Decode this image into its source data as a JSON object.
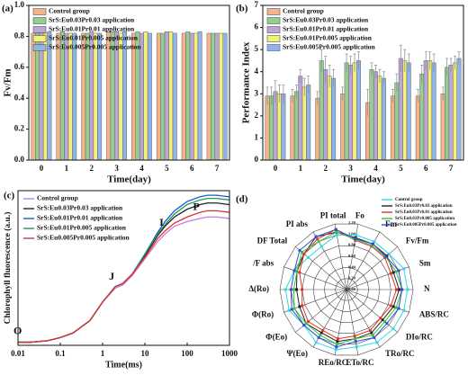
{
  "chart_data": [
    {
      "type": "bar",
      "panel_label": "(a)",
      "y_label": "Fv/Fm",
      "x_label": "Time(day)",
      "categories": [
        "0",
        "1",
        "2",
        "3",
        "4",
        "5",
        "6",
        "7"
      ],
      "series": [
        {
          "name": "Control group",
          "color": "#f5b38a",
          "values": [
            0.82,
            0.82,
            0.82,
            0.83,
            0.82,
            0.82,
            0.82,
            0.82
          ]
        },
        {
          "name": "SrS:Eu0.03Pr0.03 application",
          "color": "#93cf8e",
          "values": [
            0.82,
            0.83,
            0.82,
            0.83,
            0.83,
            0.82,
            0.83,
            0.82
          ]
        },
        {
          "name": "SrS:Eu0.01Pr0.01 application",
          "color": "#bba6d8",
          "values": [
            0.82,
            0.82,
            0.83,
            0.83,
            0.82,
            0.83,
            0.82,
            0.82
          ]
        },
        {
          "name": "SrS:Eu0.01Pr0.005 application",
          "color": "#f5f07a",
          "values": [
            0.82,
            0.82,
            0.82,
            0.82,
            0.83,
            0.83,
            0.82,
            0.82
          ]
        },
        {
          "name": "SrS:Eu0.005Pr0.005 application",
          "color": "#8fb4ea",
          "values": [
            0.83,
            0.82,
            0.82,
            0.83,
            0.82,
            0.82,
            0.83,
            0.82
          ]
        }
      ],
      "ylim": [
        0,
        1.0
      ],
      "yticks": [
        {
          "value": 0,
          "label": "0.0"
        },
        0.2,
        0.4,
        0.6,
        0.8,
        {
          "value": 1,
          "label": "1.0"
        }
      ],
      "legend": "upper left"
    },
    {
      "type": "bar",
      "panel_label": "(b)",
      "y_label": "Performance Index",
      "x_label": "Time(day)",
      "categories": [
        "0",
        "1",
        "2",
        "3",
        "4",
        "5",
        "6",
        "7"
      ],
      "series": [
        {
          "name": "Control group",
          "color": "#f5b38a",
          "values": [
            2.9,
            2.9,
            2.8,
            3.0,
            2.6,
            2.9,
            2.9,
            3.0
          ],
          "errors": [
            0.4,
            0.3,
            0.3,
            0.3,
            0.6,
            0.3,
            0.3,
            0.3
          ]
        },
        {
          "name": "SrS:Eu0.03Pr0.03 application",
          "color": "#93cf8e",
          "values": [
            2.9,
            3.1,
            4.5,
            4.4,
            4.1,
            3.5,
            3.9,
            4.2
          ],
          "errors": [
            0.4,
            0.3,
            0.5,
            0.4,
            0.3,
            0.4,
            0.4,
            0.4
          ]
        },
        {
          "name": "SrS:Eu0.01Pr0.01 application",
          "color": "#bba6d8",
          "values": [
            3.1,
            3.8,
            4.1,
            4.3,
            4.0,
            4.6,
            4.5,
            4.3
          ],
          "errors": [
            0.5,
            0.3,
            0.6,
            0.4,
            0.3,
            0.6,
            0.4,
            0.3
          ]
        },
        {
          "name": "SrS:Eu0.01Pr0.005 application",
          "color": "#f5f07a",
          "values": [
            3.0,
            3.3,
            3.8,
            4.4,
            3.8,
            4.5,
            4.5,
            4.4
          ],
          "errors": [
            0.4,
            0.4,
            0.5,
            0.4,
            0.3,
            0.5,
            0.4,
            0.3
          ]
        },
        {
          "name": "SrS:Eu0.005Pr0.005 application",
          "color": "#8fb4ea",
          "values": [
            3.0,
            3.4,
            3.7,
            4.5,
            3.7,
            4.4,
            4.4,
            4.6
          ],
          "errors": [
            0.4,
            0.4,
            0.4,
            0.4,
            0.3,
            0.4,
            0.4,
            0.3
          ]
        }
      ],
      "ylim": [
        0,
        7
      ],
      "yticks": [
        0,
        1,
        2,
        3,
        4,
        5,
        6,
        7
      ],
      "legend": "upper left"
    },
    {
      "type": "line",
      "panel_label": "(c)",
      "y_label": "Chlorophyll fluorescence (a.u.)",
      "x_label": "Time(ms)",
      "x": [
        0.01,
        0.02,
        0.05,
        0.1,
        0.2,
        0.5,
        1,
        2,
        3,
        5,
        10,
        20,
        30,
        50,
        100,
        200,
        300,
        500,
        1000
      ],
      "xscale": "log",
      "xlim": [
        0.01,
        1000
      ],
      "xticks": [
        0.01,
        0.1,
        1,
        10,
        100,
        1000
      ],
      "ylim": [
        0,
        1
      ],
      "series": [
        {
          "name": "Control group",
          "color": "#c77ce0",
          "values": [
            0.02,
            0.02,
            0.03,
            0.05,
            0.08,
            0.16,
            0.28,
            0.37,
            0.39,
            0.45,
            0.56,
            0.67,
            0.72,
            0.77,
            0.8,
            0.82,
            0.83,
            0.83,
            0.82
          ]
        },
        {
          "name": "SrS:Eu0.03Pr0.03 application",
          "color": "#222222",
          "values": [
            0.02,
            0.02,
            0.03,
            0.05,
            0.08,
            0.16,
            0.28,
            0.38,
            0.4,
            0.46,
            0.58,
            0.71,
            0.77,
            0.83,
            0.88,
            0.91,
            0.92,
            0.92,
            0.91
          ]
        },
        {
          "name": "SrS:Eu0.01Pr0.01 application",
          "color": "#2255cc",
          "values": [
            0.02,
            0.02,
            0.03,
            0.05,
            0.08,
            0.16,
            0.28,
            0.38,
            0.4,
            0.46,
            0.59,
            0.73,
            0.8,
            0.87,
            0.93,
            0.96,
            0.97,
            0.97,
            0.96
          ]
        },
        {
          "name": "SrS:Eu0.01Pr0.005 application",
          "color": "#1a9a5a",
          "values": [
            0.02,
            0.02,
            0.03,
            0.05,
            0.08,
            0.16,
            0.28,
            0.38,
            0.4,
            0.46,
            0.59,
            0.72,
            0.78,
            0.85,
            0.91,
            0.94,
            0.95,
            0.95,
            0.94
          ]
        },
        {
          "name": "SrS:Eu0.005Pr0.005 application",
          "color": "#e03030",
          "values": [
            0.02,
            0.02,
            0.03,
            0.05,
            0.08,
            0.16,
            0.28,
            0.38,
            0.4,
            0.46,
            0.57,
            0.69,
            0.74,
            0.79,
            0.83,
            0.86,
            0.87,
            0.87,
            0.86
          ]
        }
      ],
      "annotations": [
        {
          "text": "O",
          "x": 0.012
        },
        {
          "text": "J",
          "x": 2
        },
        {
          "text": "I",
          "x": 30
        },
        {
          "text": "P",
          "x": 200
        }
      ],
      "legend": "upper left"
    },
    {
      "type": "radar",
      "panel_label": "(d)",
      "axes": [
        "Fo",
        "Fm",
        "Fv/Fm",
        "Sm",
        "N",
        "ABS/RC",
        "DIo/RC",
        "TRo/RC",
        "ETo/RC",
        "REo/RC",
        "Ψ(Eo)",
        "Φ(Eo)",
        "Φ(Ro)",
        "Δ(Ro)",
        "/F abs",
        "DF Total",
        "PI abs",
        "PI total"
      ],
      "series": [
        {
          "name": "Control group",
          "color": "#33d6e6",
          "values": [
            1.0,
            1.0,
            1.0,
            1.1,
            1.1,
            1.1,
            1.1,
            1.1,
            1.05,
            1.1,
            1.1,
            1.0,
            1.1,
            1.1,
            1.0,
            0.9,
            0.9,
            1.0
          ]
        },
        {
          "name": "SrS:Eu0.03Pr0.03 application",
          "color": "#222222",
          "values": [
            0.95,
            0.95,
            0.95,
            0.9,
            0.95,
            0.9,
            0.85,
            0.9,
            0.9,
            0.95,
            0.9,
            0.95,
            0.9,
            0.9,
            0.95,
            1.0,
            1.1,
            1.05
          ]
        },
        {
          "name": "SrS:Eu0.01Pr0.01 application",
          "color": "#e8302a",
          "values": [
            0.9,
            0.9,
            0.9,
            0.85,
            0.9,
            0.85,
            0.8,
            0.85,
            0.85,
            0.9,
            0.85,
            0.9,
            0.85,
            0.8,
            0.9,
            1.0,
            1.05,
            1.1
          ]
        },
        {
          "name": "SrS:Eu0.01Pr0.005 application",
          "color": "#3ac23a",
          "values": [
            0.92,
            0.92,
            0.92,
            0.95,
            1.0,
            0.95,
            0.9,
            0.95,
            0.9,
            1.0,
            0.95,
            0.95,
            1.0,
            0.95,
            0.95,
            1.05,
            1.0,
            1.05
          ]
        },
        {
          "name": "SrS:Eu0.005Pr0.005 application",
          "color": "#2f4fd6",
          "values": [
            0.93,
            0.95,
            0.93,
            1.0,
            1.0,
            1.0,
            0.95,
            1.0,
            0.95,
            1.05,
            1.0,
            1.0,
            1.05,
            1.0,
            1.0,
            1.1,
            1.1,
            1.1
          ]
        }
      ],
      "rlim": [
        0,
        1.2
      ],
      "rticks": [
        {
          "value": 0,
          "label": "0.00"
        },
        {
          "value": 0.2,
          "label": "0.20"
        },
        {
          "value": 0.4,
          "label": "0.40"
        },
        {
          "value": 0.6,
          "label": "0.60"
        },
        {
          "value": 0.8,
          "label": "0.80"
        },
        {
          "value": 1,
          "label": "1.00"
        },
        {
          "value": 1.2,
          "label": "1.20"
        }
      ],
      "legend": "upper right"
    }
  ]
}
